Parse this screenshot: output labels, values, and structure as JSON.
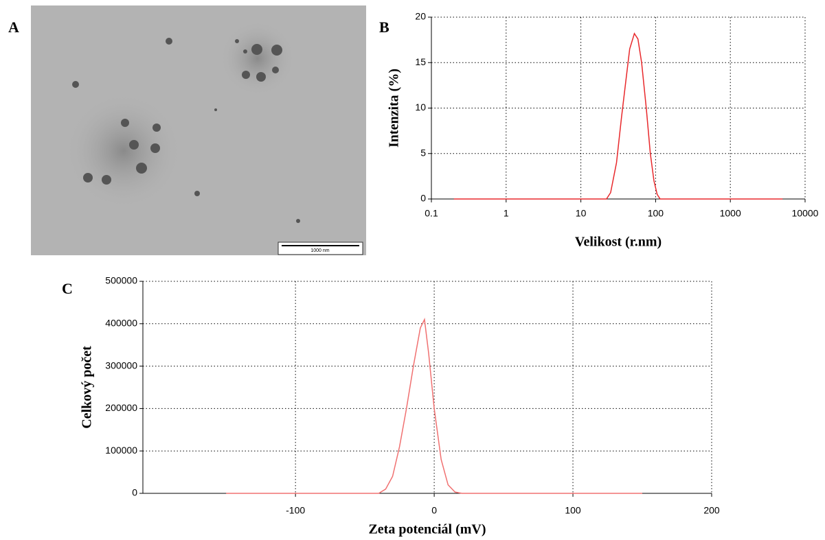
{
  "image_panel": {
    "label": "A",
    "scale_bar": "1000 nm"
  },
  "chart_data": [
    {
      "type": "line",
      "panel_label": "B",
      "xlabel": "Velikost (r.nm)",
      "ylabel": "Intenzita (%)",
      "xscale": "log",
      "xlim": [
        0.1,
        10000
      ],
      "xticks": [
        0.1,
        1,
        10,
        100,
        1000,
        10000
      ],
      "ylim": [
        0,
        20
      ],
      "yticks": [
        0,
        5,
        10,
        15,
        20
      ],
      "grid": true,
      "color": "#e8282b",
      "x": [
        0.2,
        1,
        10,
        22,
        25,
        30,
        35,
        40,
        45,
        52,
        58,
        65,
        75,
        85,
        95,
        105,
        115,
        1000,
        5000
      ],
      "values": [
        0,
        0,
        0,
        0,
        0.7,
        4,
        9,
        13,
        16.5,
        18.2,
        17.6,
        15,
        10,
        5,
        2,
        0.5,
        0,
        0,
        0
      ]
    },
    {
      "type": "line",
      "panel_label": "C",
      "xlabel": "Zeta potenciál (mV)",
      "ylabel": "Celkový počet",
      "xscale": "linear",
      "xlim": [
        -210,
        200
      ],
      "xticks": [
        -100,
        0,
        100,
        200
      ],
      "ylim": [
        0,
        500000
      ],
      "yticks": [
        0,
        100000,
        200000,
        300000,
        400000,
        500000
      ],
      "grid": true,
      "color": "#f07070",
      "x": [
        -150,
        -40,
        -35,
        -30,
        -25,
        -20,
        -15,
        -10,
        -7,
        -4,
        0,
        5,
        10,
        15,
        20,
        150
      ],
      "values": [
        0,
        0,
        10000,
        40000,
        110000,
        200000,
        300000,
        390000,
        410000,
        330000,
        200000,
        80000,
        20000,
        3000,
        0,
        0
      ]
    }
  ]
}
